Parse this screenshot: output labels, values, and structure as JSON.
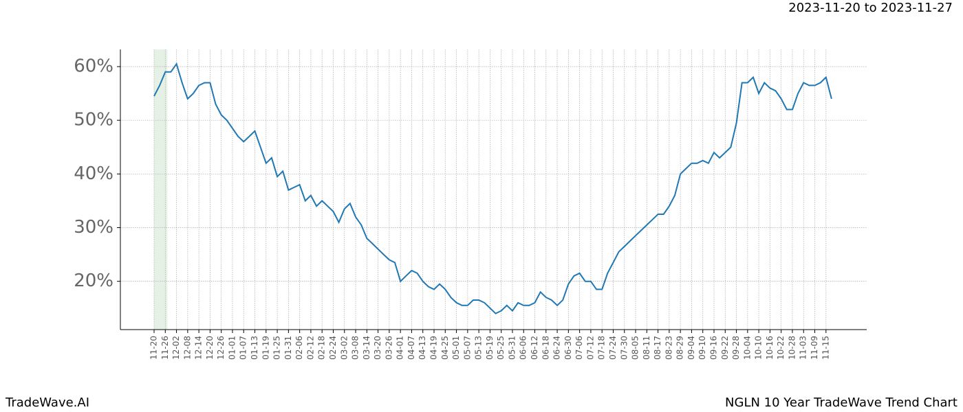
{
  "header": {
    "date_range": "2023-11-20 to 2023-11-27"
  },
  "footer": {
    "brand": "TradeWave.AI",
    "chart_name": "NGLN 10 Year TradeWave Trend Chart"
  },
  "chart_data": {
    "type": "line",
    "categories": [
      "11-20",
      null,
      "11-26",
      null,
      "12-02",
      null,
      "12-08",
      null,
      "12-14",
      null,
      "12-20",
      null,
      "12-26",
      null,
      "01-01",
      null,
      "01-07",
      null,
      "01-13",
      null,
      "01-19",
      null,
      "01-25",
      null,
      "01-31",
      null,
      "02-06",
      null,
      "02-12",
      null,
      "02-18",
      null,
      "02-24",
      null,
      "03-02",
      null,
      "03-08",
      null,
      "03-14",
      null,
      "03-20",
      null,
      "03-26",
      null,
      "04-01",
      null,
      "04-07",
      null,
      "04-13",
      null,
      "04-19",
      null,
      "04-25",
      null,
      "05-01",
      null,
      "05-07",
      null,
      "05-13",
      null,
      "05-19",
      null,
      "05-25",
      null,
      "05-31",
      null,
      "06-06",
      null,
      "06-12",
      null,
      "06-18",
      null,
      "06-24",
      null,
      "06-30",
      null,
      "07-06",
      null,
      "07-12",
      null,
      "07-18",
      null,
      "07-24",
      null,
      "07-30",
      null,
      "08-05",
      null,
      "08-11",
      null,
      "08-17",
      null,
      "08-23",
      null,
      "08-29",
      null,
      "09-04",
      null,
      "09-10",
      null,
      "09-16",
      null,
      "09-22",
      null,
      "09-28",
      null,
      "10-04",
      null,
      "10-10",
      null,
      "10-16",
      null,
      "10-22",
      null,
      "10-28",
      null,
      "11-03",
      null,
      "11-09",
      null,
      "11-15",
      null
    ],
    "series": [
      {
        "color": "#1f77b4",
        "values": [
          54.5,
          56.5,
          59,
          59,
          60.5,
          57,
          54,
          55,
          56.5,
          57,
          57,
          53,
          51,
          50,
          48.5,
          47,
          46,
          47,
          48,
          45,
          42,
          43,
          39.5,
          40.5,
          37,
          37.5,
          38,
          35,
          36,
          34,
          35,
          34,
          33,
          31,
          33.5,
          34.5,
          32,
          30.5,
          28,
          27,
          26,
          25,
          24,
          23.5,
          20,
          21,
          22,
          21.5,
          20,
          19,
          18.5,
          19.5,
          18.5,
          17,
          16,
          15.5,
          15.5,
          16.5,
          16.5,
          16,
          15,
          14,
          14.5,
          15.5,
          14.5,
          16,
          15.5,
          15.5,
          16,
          18,
          17,
          16.5,
          15.5,
          16.5,
          19.5,
          21,
          21.5,
          20,
          20,
          18.5,
          18.5,
          21.5,
          23.5,
          25.5,
          26.5,
          27.5,
          28.5,
          29.5,
          30.5,
          31.5,
          32.5,
          32.5,
          34,
          36,
          40,
          41,
          42,
          42,
          42.5,
          42,
          44,
          43,
          44,
          45,
          49.5,
          57,
          57,
          58,
          55,
          57,
          56,
          55.5,
          54,
          52,
          52,
          55,
          57,
          56.5,
          56.5,
          57,
          58,
          54
        ]
      }
    ],
    "ylim": [
      11,
      63.2
    ],
    "yticks": [
      {
        "value": 20,
        "label": "20%"
      },
      {
        "value": 30,
        "label": "30%"
      },
      {
        "value": 40,
        "label": "40%"
      },
      {
        "value": 50,
        "label": "50%"
      },
      {
        "value": 60,
        "label": "60%"
      }
    ],
    "grid": true,
    "highlight": {
      "from": "11-20",
      "to": "11-26",
      "color": "#d5e8d4"
    }
  }
}
